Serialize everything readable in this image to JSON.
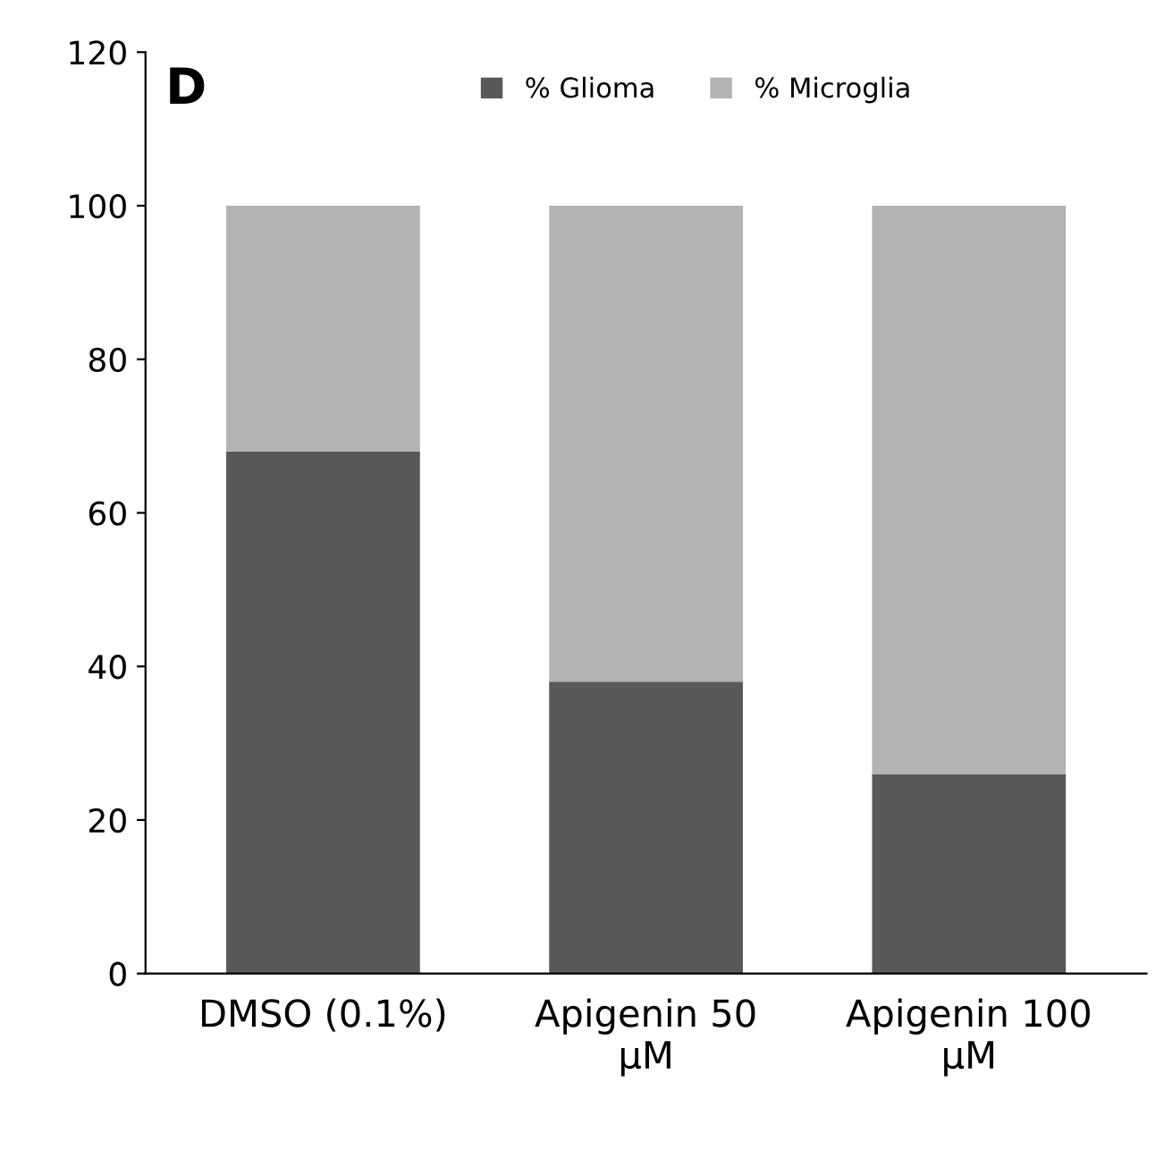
{
  "chart_data": {
    "type": "bar",
    "stacked": true,
    "categories": [
      "DMSO (0.1%)",
      "Apigenin 50 µM",
      "Apigenin 100 µM"
    ],
    "series": [
      {
        "name": "% Glioma",
        "color": "#595959",
        "values": [
          68,
          38,
          26
        ]
      },
      {
        "name": "% Microglia",
        "color": "#b3b3b3",
        "values": [
          32,
          62,
          74
        ]
      }
    ],
    "ylim": [
      0,
      120
    ],
    "yticks": [
      0,
      20,
      40,
      60,
      80,
      100,
      120
    ],
    "grid": false,
    "legend": "top",
    "annotations": [
      "D"
    ]
  }
}
